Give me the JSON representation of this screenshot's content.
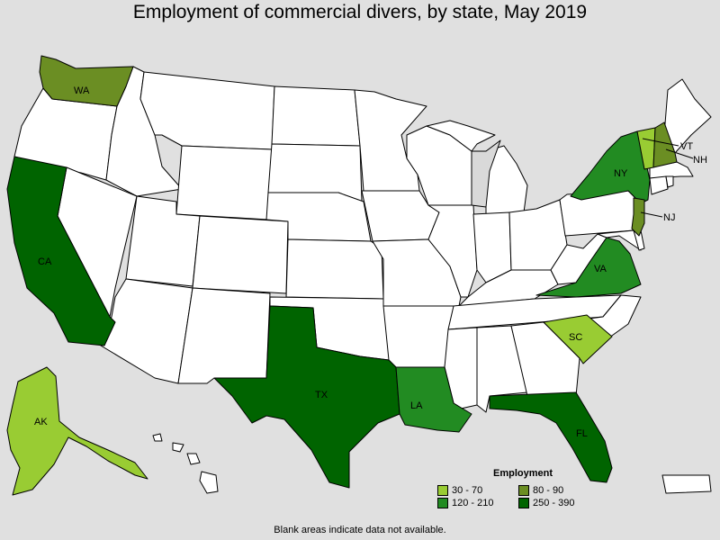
{
  "title": "Employment of commercial divers, by state, May 2019",
  "colors": {
    "background": "#e0e0e0",
    "nodata": "#ffffff",
    "excluded": "#d9d9d9",
    "c1": "#99cc33",
    "c2": "#6b8e23",
    "c3": "#228b22",
    "c4": "#006400"
  },
  "legend": {
    "title": "Employment",
    "items": [
      {
        "range": "30 - 70",
        "color": "#99cc33"
      },
      {
        "range": "80 - 90",
        "color": "#6b8e23"
      },
      {
        "range": "120 - 210",
        "color": "#228b22"
      },
      {
        "range": "250 - 390",
        "color": "#006400"
      }
    ]
  },
  "labels": {
    "WA": "WA",
    "CA": "CA",
    "AK": "AK",
    "TX": "TX",
    "LA": "LA",
    "FL": "FL",
    "SC": "SC",
    "VA": "VA",
    "NY": "NY",
    "NJ": "NJ",
    "VT": "VT",
    "NH": "NH"
  },
  "state_classes": {
    "WA": "80 - 90",
    "CA": "250 - 390",
    "AK": "30 - 70",
    "TX": "250 - 390",
    "LA": "120 - 210",
    "FL": "250 - 390",
    "SC": "30 - 70",
    "VA": "120 - 210",
    "NY": "120 - 210",
    "NJ": "80 - 90",
    "VT": "30 - 70",
    "NH": "80 - 90"
  },
  "footnote": "Blank areas indicate data not available."
}
